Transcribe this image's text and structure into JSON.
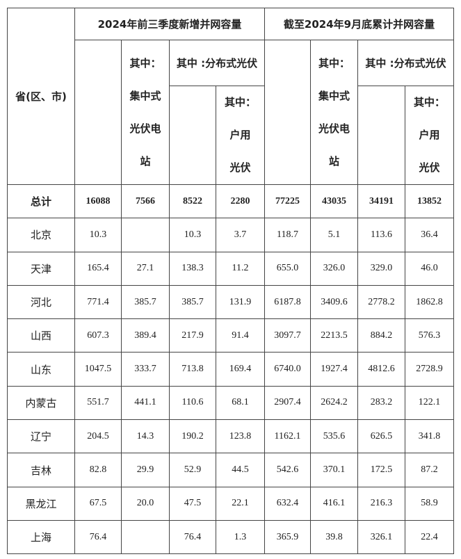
{
  "header": {
    "province": "省(区、市)",
    "group_new": "2024年前三季度新增并网容量",
    "group_cum": "截至2024年9月底累计并网容量",
    "centralized": [
      "其中：",
      "集中式",
      "光伏电",
      "站"
    ],
    "distributed": "其中 :分布式光伏",
    "household": [
      "其中：",
      "户用",
      "光伏"
    ]
  },
  "rows": [
    {
      "name": "总计",
      "values": [
        "16088",
        "7566",
        "8522",
        "2280",
        "77225",
        "43035",
        "34191",
        "13852"
      ]
    },
    {
      "name": "北京",
      "values": [
        "10.3",
        "",
        "10.3",
        "3.7",
        "118.7",
        "5.1",
        "113.6",
        "36.4"
      ]
    },
    {
      "name": "天津",
      "values": [
        "165.4",
        "27.1",
        "138.3",
        "11.2",
        "655.0",
        "326.0",
        "329.0",
        "46.0"
      ]
    },
    {
      "name": "河北",
      "values": [
        "771.4",
        "385.7",
        "385.7",
        "131.9",
        "6187.8",
        "3409.6",
        "2778.2",
        "1862.8"
      ]
    },
    {
      "name": "山西",
      "values": [
        "607.3",
        "389.4",
        "217.9",
        "91.4",
        "3097.7",
        "2213.5",
        "884.2",
        "576.3"
      ]
    },
    {
      "name": "山东",
      "values": [
        "1047.5",
        "333.7",
        "713.8",
        "169.4",
        "6740.0",
        "1927.4",
        "4812.6",
        "2728.9"
      ]
    },
    {
      "name": "内蒙古",
      "values": [
        "551.7",
        "441.1",
        "110.6",
        "68.1",
        "2907.4",
        "2624.2",
        "283.2",
        "122.1"
      ]
    },
    {
      "name": "辽宁",
      "values": [
        "204.5",
        "14.3",
        "190.2",
        "123.8",
        "1162.1",
        "535.6",
        "626.5",
        "341.8"
      ]
    },
    {
      "name": "吉林",
      "values": [
        "82.8",
        "29.9",
        "52.9",
        "44.5",
        "542.6",
        "370.1",
        "172.5",
        "87.2"
      ]
    },
    {
      "name": "黑龙江",
      "values": [
        "67.5",
        "20.0",
        "47.5",
        "22.1",
        "632.4",
        "416.1",
        "216.3",
        "58.9"
      ]
    },
    {
      "name": "上海",
      "values": [
        "76.4",
        "",
        "76.4",
        "1.3",
        "365.9",
        "39.8",
        "326.1",
        "22.4"
      ]
    }
  ]
}
